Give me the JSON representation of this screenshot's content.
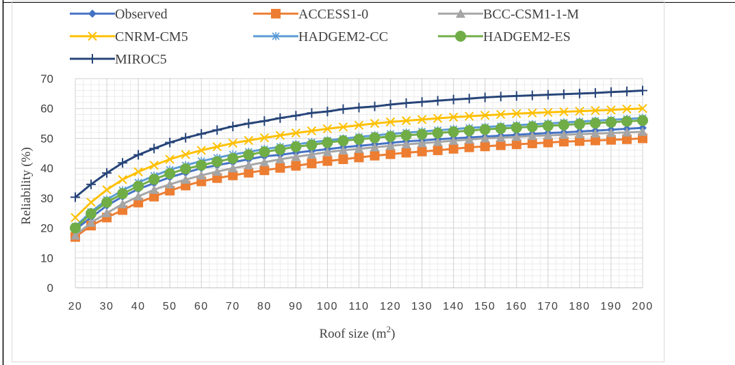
{
  "chart_data": {
    "type": "line",
    "xlabel": "Roof size (m²)",
    "xlabel_main": "Roof size (m",
    "xlabel_sup": "2",
    "xlabel_close": ")",
    "ylabel": "Reliability (%)",
    "ylim": [
      0,
      70
    ],
    "yticks": [
      0,
      10,
      20,
      30,
      40,
      50,
      60,
      70
    ],
    "xticks": [
      20,
      30,
      40,
      50,
      60,
      70,
      80,
      90,
      100,
      110,
      120,
      130,
      140,
      150,
      160,
      170,
      180,
      190,
      200
    ],
    "xlim": [
      20,
      200
    ],
    "grid": true,
    "legend_position": "top",
    "x": [
      20,
      25,
      30,
      35,
      40,
      45,
      50,
      55,
      60,
      65,
      70,
      75,
      80,
      85,
      90,
      95,
      100,
      105,
      110,
      115,
      120,
      125,
      130,
      135,
      140,
      145,
      150,
      155,
      160,
      165,
      170,
      175,
      180,
      185,
      190,
      195,
      200
    ],
    "series": [
      {
        "name": "Observed",
        "color": "#4472c4",
        "marker": "diamond",
        "values": [
          19.5,
          23.5,
          27.5,
          30.5,
          33,
          35,
          37,
          38.5,
          40,
          41,
          42,
          43,
          44,
          44.5,
          45.2,
          45.8,
          46.4,
          47,
          47.5,
          48,
          48.5,
          49,
          49.3,
          49.7,
          50,
          50.3,
          50.6,
          50.9,
          51.2,
          51.5,
          51.8,
          52,
          52.3,
          52.6,
          52.9,
          53.2,
          53.5
        ]
      },
      {
        "name": "ACCESS1-0",
        "color": "#ed7d31",
        "marker": "square",
        "values": [
          17,
          20.8,
          23.5,
          26,
          28.5,
          30.5,
          32.5,
          34.2,
          35.6,
          36.7,
          37.6,
          38.5,
          39.3,
          40.1,
          40.8,
          41.6,
          42.4,
          43,
          43.6,
          44.2,
          44.7,
          45.2,
          45.6,
          46,
          46.5,
          47,
          47.3,
          47.7,
          48,
          48.3,
          48.6,
          48.9,
          49.1,
          49.3,
          49.5,
          49.7,
          50
        ]
      },
      {
        "name": "BCC-CSM1-1-M",
        "color": "#a5a5a5",
        "marker": "triangle",
        "values": [
          17.5,
          21.8,
          25,
          28,
          30.6,
          32.8,
          34.6,
          36.2,
          37.6,
          38.9,
          40,
          41,
          42,
          43,
          43.8,
          44.6,
          45.4,
          46,
          46.5,
          47,
          47.5,
          48,
          48.4,
          48.8,
          49.2,
          49.6,
          50,
          50.2,
          50.5,
          50.8,
          51,
          51.2,
          51.4,
          51.6,
          51.8,
          52,
          52.2
        ]
      },
      {
        "name": "CNRM-CM5",
        "color": "#ffc000",
        "marker": "x",
        "values": [
          23.5,
          28.6,
          32.8,
          36.2,
          38.8,
          41,
          43,
          44.6,
          46,
          47.2,
          48.4,
          49.3,
          50.2,
          51,
          51.8,
          52.5,
          53.2,
          53.8,
          54.4,
          55,
          55.5,
          55.9,
          56.3,
          56.7,
          57.1,
          57.4,
          57.7,
          58,
          58.3,
          58.5,
          58.7,
          58.9,
          59.1,
          59.3,
          59.5,
          59.8,
          60
        ]
      },
      {
        "name": "HADGEM2-CC",
        "color": "#5b9bd5",
        "marker": "star",
        "values": [
          20.5,
          25.4,
          29.5,
          32.6,
          35.2,
          37.5,
          39.5,
          41,
          42.4,
          43.5,
          44.6,
          45.5,
          46.4,
          47.2,
          48,
          48.7,
          49.3,
          49.9,
          50.5,
          51,
          51.5,
          51.9,
          52.3,
          52.7,
          53.1,
          53.5,
          53.8,
          54.1,
          54.4,
          54.7,
          55,
          55.3,
          55.6,
          55.9,
          56.2,
          56.5,
          56.8
        ]
      },
      {
        "name": "HADGEM2-ES",
        "color": "#70ad47",
        "marker": "circle",
        "values": [
          20,
          24.8,
          28.6,
          31.5,
          34,
          36.3,
          38.2,
          39.8,
          41,
          42.2,
          43.3,
          44.5,
          45.5,
          46.3,
          47.2,
          47.8,
          48.6,
          49.2,
          49.7,
          50.2,
          50.6,
          51,
          51.4,
          51.8,
          52.2,
          52.6,
          53,
          53.3,
          53.6,
          53.9,
          54.2,
          54.5,
          54.8,
          55.1,
          55.4,
          55.7,
          56
        ]
      },
      {
        "name": "MIROC5",
        "color": "#264478",
        "marker": "plus",
        "values": [
          30.3,
          34.6,
          38.4,
          41.8,
          44.5,
          46.6,
          48.6,
          50.2,
          51.5,
          52.8,
          54,
          55,
          55.8,
          56.8,
          57.6,
          58.5,
          59,
          59.8,
          60.3,
          60.7,
          61.3,
          61.8,
          62.2,
          62.6,
          63,
          63.3,
          63.7,
          64,
          64.2,
          64.4,
          64.6,
          64.8,
          65,
          65.2,
          65.5,
          65.7,
          66
        ]
      }
    ]
  }
}
